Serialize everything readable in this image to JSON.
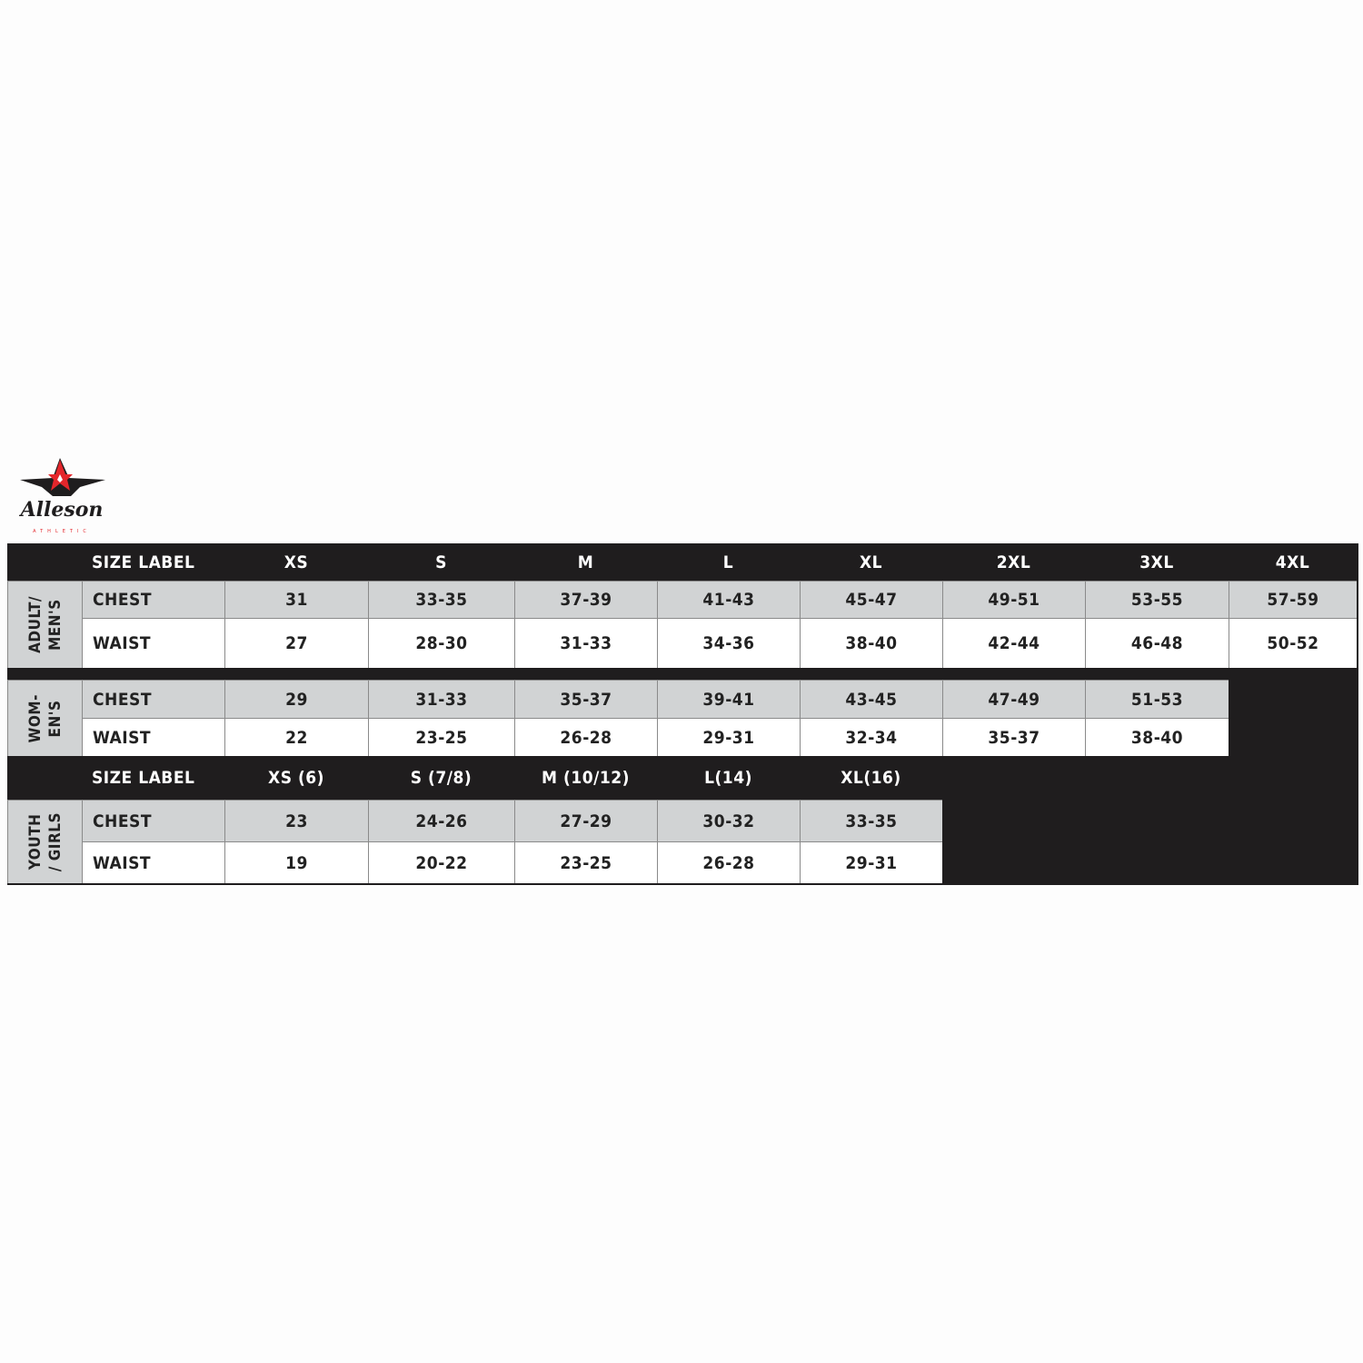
{
  "brand": {
    "name": "Alleson",
    "tagline": "ATHLETIC",
    "colors": {
      "star": "#e4262b",
      "wings": "#1f1d1e"
    }
  },
  "colors": {
    "header_bg": "#1f1d1e",
    "row_gray": "#d1d3d4",
    "row_white": "#ffffff"
  },
  "adult_header": {
    "label": "SIZE LABEL",
    "sizes": [
      "XS",
      "S",
      "M",
      "L",
      "XL",
      "2XL",
      "3XL",
      "4XL"
    ]
  },
  "groups": [
    {
      "name": "ADULT/\nMEN'S",
      "rows": [
        {
          "label": "CHEST",
          "values": [
            "31",
            "33-35",
            "37-39",
            "41-43",
            "45-47",
            "49-51",
            "53-55",
            "57-59"
          ]
        },
        {
          "label": "WAIST",
          "values": [
            "27",
            "28-30",
            "31-33",
            "34-36",
            "38-40",
            "42-44",
            "46-48",
            "50-52"
          ]
        }
      ]
    },
    {
      "name": "WOM-\nEN'S",
      "rows": [
        {
          "label": "CHEST",
          "values": [
            "29",
            "31-33",
            "35-37",
            "39-41",
            "43-45",
            "47-49",
            "51-53"
          ]
        },
        {
          "label": "WAIST",
          "values": [
            "22",
            "23-25",
            "26-28",
            "29-31",
            "32-34",
            "35-37",
            "38-40"
          ]
        }
      ]
    }
  ],
  "youth_header": {
    "label": "SIZE LABEL",
    "sizes": [
      "XS (6)",
      "S (7/8)",
      "M (10/12)",
      "L(14)",
      "XL(16)"
    ]
  },
  "youth_group": {
    "name": "YOUTH\n/ GIRLS",
    "rows": [
      {
        "label": "CHEST",
        "values": [
          "23",
          "24-26",
          "27-29",
          "30-32",
          "33-35"
        ]
      },
      {
        "label": "WAIST",
        "values": [
          "19",
          "20-22",
          "23-25",
          "26-28",
          "29-31"
        ]
      }
    ]
  }
}
